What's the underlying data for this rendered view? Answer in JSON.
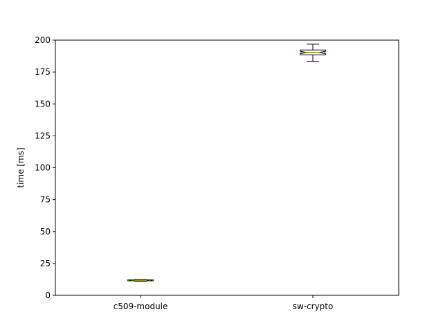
{
  "chart_data": {
    "type": "boxplot",
    "title": "",
    "xlabel": "",
    "ylabel": "time [ms]",
    "ylim": [
      0,
      200
    ],
    "yticks": [
      0,
      25,
      50,
      75,
      100,
      125,
      150,
      175,
      200
    ],
    "categories": [
      "c509-module",
      "sw-crypto"
    ],
    "boxes": [
      {
        "label": "c509-module",
        "whisker_low": 11.0,
        "q1": 11.4,
        "median": 11.7,
        "mean": 11.8,
        "q3": 12.1,
        "whisker_high": 12.4,
        "notch_low": 11.5,
        "notch_high": 11.9
      },
      {
        "label": "sw-crypto",
        "whisker_low": 183.5,
        "q1": 188.5,
        "median": 190.3,
        "mean": 190.5,
        "q3": 192.3,
        "whisker_high": 196.8,
        "notch_low": 189.3,
        "notch_high": 191.3
      }
    ],
    "colors": {
      "box": "#000000",
      "median": "#ff7f0e",
      "mean": "#2ca02c"
    },
    "grid": false,
    "legend": "none"
  }
}
